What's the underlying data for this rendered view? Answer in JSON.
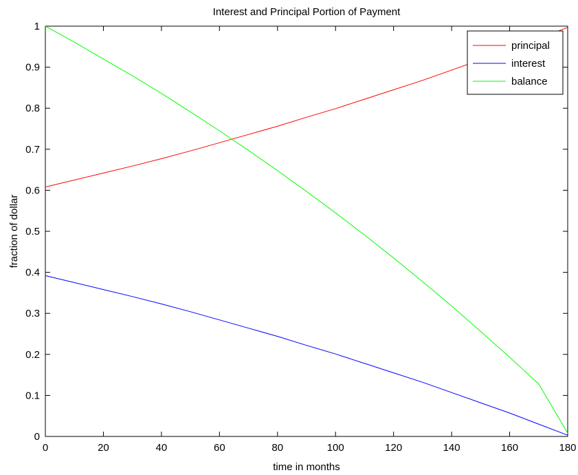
{
  "chart_data": {
    "type": "line",
    "title": "Interest and Principal Portion of Payment",
    "xlabel": "time in months",
    "ylabel": "fraction of dollar",
    "xlim": [
      0,
      180
    ],
    "ylim": [
      0,
      1
    ],
    "xticks": [
      "0",
      "20",
      "40",
      "60",
      "80",
      "100",
      "120",
      "140",
      "160",
      "180"
    ],
    "yticks": [
      "0",
      "0.1",
      "0.2",
      "0.3",
      "0.4",
      "0.5",
      "0.6",
      "0.7",
      "0.8",
      "0.9",
      "1"
    ],
    "grid": false,
    "legend_position": "top-right",
    "x": [
      0,
      10,
      20,
      30,
      40,
      50,
      60,
      70,
      80,
      90,
      100,
      110,
      120,
      130,
      140,
      150,
      160,
      170,
      180
    ],
    "series": [
      {
        "name": "principal",
        "color": "#ff0000",
        "values": [
          0.608,
          0.625,
          0.642,
          0.659,
          0.677,
          0.696,
          0.716,
          0.736,
          0.756,
          0.778,
          0.799,
          0.822,
          0.845,
          0.868,
          0.893,
          0.918,
          0.943,
          0.97,
          0.997
        ]
      },
      {
        "name": "interest",
        "color": "#0000ff",
        "values": [
          0.392,
          0.375,
          0.358,
          0.341,
          0.323,
          0.304,
          0.284,
          0.264,
          0.244,
          0.222,
          0.201,
          0.178,
          0.155,
          0.132,
          0.107,
          0.082,
          0.057,
          0.03,
          0.003
        ]
      },
      {
        "name": "balance",
        "color": "#00ff00",
        "values": [
          1.0,
          0.961,
          0.92,
          0.879,
          0.836,
          0.791,
          0.745,
          0.697,
          0.648,
          0.597,
          0.545,
          0.491,
          0.435,
          0.377,
          0.318,
          0.256,
          0.193,
          0.128,
          0.008
        ]
      }
    ]
  }
}
